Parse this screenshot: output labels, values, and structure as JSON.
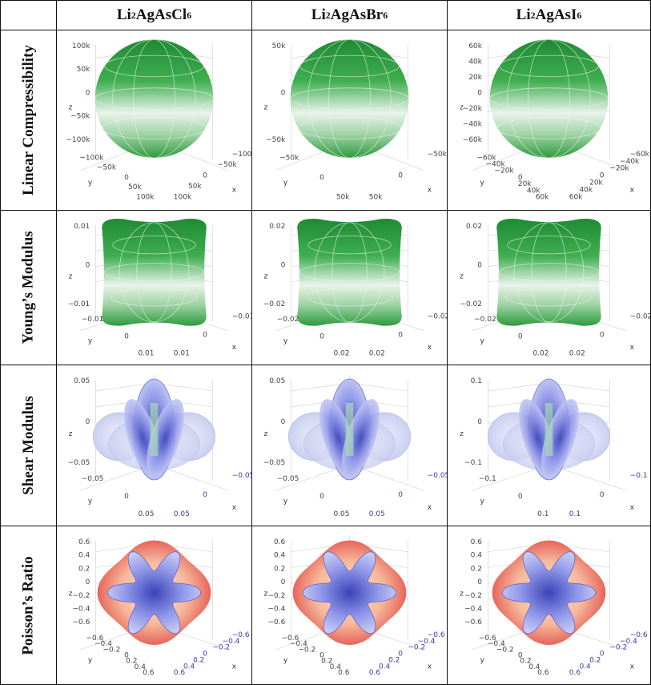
{
  "columns": [
    {
      "base": "Li",
      "s1": "2",
      "mid": "AgAsCl",
      "s2": "6"
    },
    {
      "base": "Li",
      "s1": "2",
      "mid": "AgAsBr",
      "s2": "6"
    },
    {
      "base": "Li",
      "s1": "2",
      "mid": "AgAsI",
      "s2": "6"
    }
  ],
  "rows": [
    {
      "label": "Linear Compressibility"
    },
    {
      "label": "Young’s Modulus"
    },
    {
      "label": "Shear Modulus"
    },
    {
      "label": "Poisson’s Ratio"
    }
  ],
  "axis_names": {
    "x": "x",
    "y": "y",
    "z": "z"
  },
  "plots": {
    "lc": [
      {
        "z": [
          "100k",
          "50k",
          "0",
          "−50k",
          "−100k"
        ],
        "y": [
          "−100k",
          "−50k",
          "0",
          "50k",
          "100k"
        ],
        "x": [
          "−100k",
          "−50k",
          "0",
          "50k",
          "100k"
        ]
      },
      {
        "z": [
          "50k",
          "0",
          "−50k"
        ],
        "y": [
          "−50k",
          "0",
          "50k"
        ],
        "x": [
          "−50k",
          "0",
          "50k"
        ]
      },
      {
        "z": [
          "60k",
          "40k",
          "20k",
          "0",
          "−20k",
          "−40k",
          "−60k"
        ],
        "y": [
          "−60k",
          "−40k",
          "−20k",
          "0",
          "20k",
          "40k",
          "60k"
        ],
        "x": [
          "−60k",
          "−40k",
          "−20k",
          "0",
          "20k",
          "40k",
          "60k"
        ]
      }
    ],
    "ym": [
      {
        "z": [
          "0.01",
          "0",
          "−0.01"
        ],
        "y": [
          "−0.01",
          "0",
          "0.01"
        ],
        "x": [
          "−0.01",
          "0",
          "0.01"
        ]
      },
      {
        "z": [
          "0.02",
          "0",
          "−0.02"
        ],
        "y": [
          "−0.02",
          "0",
          "0.02"
        ],
        "x": [
          "−0.02",
          "0",
          "0.02"
        ]
      },
      {
        "z": [
          "0.02",
          "0",
          "−0.02"
        ],
        "y": [
          "−0.02",
          "0",
          "0.02"
        ],
        "x": [
          "−0.02",
          "0",
          "0.02"
        ]
      }
    ],
    "sm": [
      {
        "z": [
          "0.05",
          "0",
          "−0.05"
        ],
        "y": [
          "−0.05",
          "0",
          "0.05"
        ],
        "x": [
          "−0.05",
          "0",
          "0.05"
        ]
      },
      {
        "z": [
          "0.05",
          "0",
          "−0.05"
        ],
        "y": [
          "−0.05",
          "0",
          "0.05"
        ],
        "x": [
          "−0.05",
          "0",
          "0.05"
        ]
      },
      {
        "z": [
          "0.1",
          "0",
          "−0.1"
        ],
        "y": [
          "−0.1",
          "0",
          "0.1"
        ],
        "x": [
          "−0.1",
          "0",
          "0.1"
        ]
      }
    ],
    "pr": [
      {
        "z": [
          "0.6",
          "0.4",
          "0.2",
          "0",
          "−0.2",
          "−0.4",
          "−0.6"
        ],
        "y": [
          "−0.6",
          "−0.4",
          "−0.2",
          "0",
          "0.2",
          "0.4",
          "0.6"
        ],
        "x": [
          "−0.6",
          "−0.4",
          "−0.2",
          "0",
          "0.2",
          "0.4",
          "0.6"
        ]
      },
      {
        "z": [
          "0.6",
          "0.4",
          "0.2",
          "0",
          "−0.2",
          "−0.4",
          "−0.6"
        ],
        "y": [
          "−0.6",
          "−0.4",
          "−0.2",
          "0",
          "0.2",
          "0.4",
          "0.6"
        ],
        "x": [
          "−0.6",
          "−0.4",
          "−0.2",
          "0",
          "0.2",
          "0.4",
          "0.6"
        ]
      },
      {
        "z": [
          "0.6",
          "0.4",
          "0.2",
          "0",
          "−0.2",
          "−0.4",
          "−0.6"
        ],
        "y": [
          "−0.6",
          "−0.4",
          "−0.2",
          "0",
          "0.2",
          "0.4",
          "0.6"
        ],
        "x": [
          "−0.6",
          "−0.4",
          "−0.2",
          "0",
          "0.2",
          "0.4",
          "0.6"
        ]
      }
    ]
  },
  "colors": {
    "green": "#2e9a3e",
    "blue": "#5a64d8",
    "red": "#e2504a",
    "border": "#111111"
  }
}
